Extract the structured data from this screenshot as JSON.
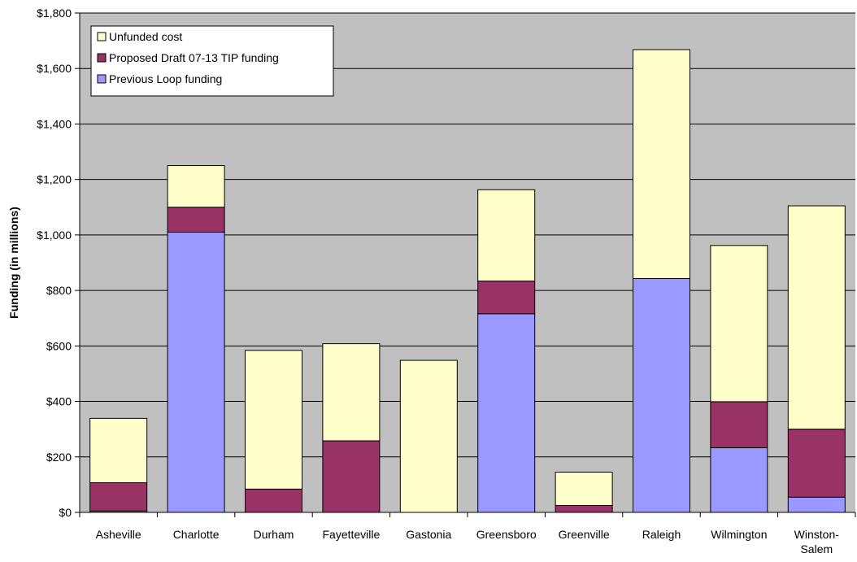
{
  "chart_data": {
    "type": "bar",
    "stacked": true,
    "ylabel": "Funding (in millions)",
    "xlabel": "",
    "ylim": [
      0,
      1800
    ],
    "y_ticks": [
      "$0",
      "$200",
      "$400",
      "$600",
      "$800",
      "$1,000",
      "$1,200",
      "$1,400",
      "$1,600",
      "$1,800"
    ],
    "y_tick_values": [
      0,
      200,
      400,
      600,
      800,
      1000,
      1200,
      1400,
      1600,
      1800
    ],
    "grid": true,
    "legend_position": "top-left",
    "categories": [
      [
        "Asheville"
      ],
      [
        "Charlotte"
      ],
      [
        "Durham"
      ],
      [
        "Fayetteville"
      ],
      [
        "Gastonia"
      ],
      [
        "Greensboro"
      ],
      [
        "Greenville"
      ],
      [
        "Raleigh"
      ],
      [
        "Wilmington"
      ],
      [
        "Winston-",
        "Salem"
      ]
    ],
    "series": [
      {
        "name": "Previous Loop funding",
        "color": "#9999ff",
        "values": [
          5,
          1010,
          0,
          0,
          0,
          716,
          0,
          843,
          233,
          55
        ]
      },
      {
        "name": "Proposed Draft 07-13 TIP funding",
        "color": "#993366",
        "values": [
          102,
          90,
          84,
          258,
          0,
          118,
          25,
          0,
          166,
          245
        ]
      },
      {
        "name": "Unfunded cost",
        "color": "#ffffcc",
        "values": [
          232,
          150,
          500,
          350,
          548,
          329,
          120,
          825,
          563,
          805
        ]
      }
    ],
    "legend_order": [
      "Unfunded cost",
      "Proposed Draft 07-13 TIP funding",
      "Previous Loop funding"
    ],
    "plot_background": "#c0c0c0"
  }
}
